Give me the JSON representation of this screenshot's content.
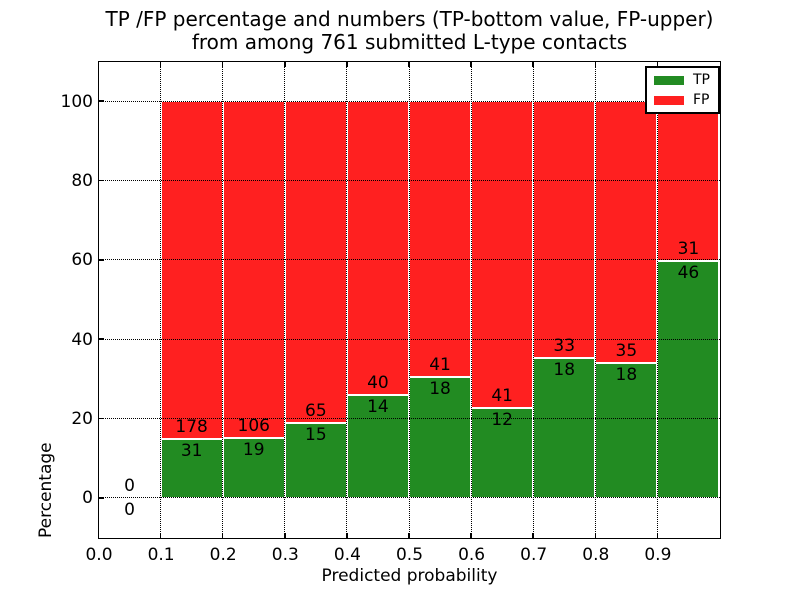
{
  "title": {
    "line1": "TP /FP percentage and numbers (TP-bottom value, FP-upper)",
    "line2": "from among 761 submitted L-type contacts"
  },
  "axes": {
    "xlabel": "Predicted probability",
    "ylabel": "Percentage",
    "xticks": [
      {
        "p": 0.0,
        "label": "0.0"
      },
      {
        "p": 0.1,
        "label": "0.1"
      },
      {
        "p": 0.2,
        "label": "0.2"
      },
      {
        "p": 0.3,
        "label": "0.3"
      },
      {
        "p": 0.4,
        "label": "0.4"
      },
      {
        "p": 0.5,
        "label": "0.5"
      },
      {
        "p": 0.6,
        "label": "0.6"
      },
      {
        "p": 0.7,
        "label": "0.7"
      },
      {
        "p": 0.8,
        "label": "0.8"
      },
      {
        "p": 0.9,
        "label": "0.9"
      }
    ],
    "yticks": [
      {
        "v": 0,
        "label": "0"
      },
      {
        "v": 20,
        "label": "20"
      },
      {
        "v": 40,
        "label": "40"
      },
      {
        "v": 60,
        "label": "60"
      },
      {
        "v": 80,
        "label": "80"
      },
      {
        "v": 100,
        "label": "100"
      }
    ]
  },
  "legend": {
    "entries": [
      {
        "label": "TP",
        "color": "#228b22"
      },
      {
        "label": "FP",
        "color": "#ff2020"
      }
    ]
  },
  "chart_data": {
    "type": "bar",
    "stacked": true,
    "title": "TP /FP percentage and numbers (TP-bottom value, FP-upper) from among 761 submitted L-type contacts",
    "xlabel": "Predicted probability",
    "ylabel": "Percentage",
    "xlim": [
      0.0,
      1.0
    ],
    "ylim": [
      -10,
      110
    ],
    "grid": true,
    "legend_position": "upper right",
    "total_submitted": 761,
    "series_names": [
      "TP",
      "FP"
    ],
    "colors": {
      "TP": "#228b22",
      "FP": "#ff2020"
    },
    "bins": [
      {
        "x0": 0.0,
        "x1": 0.1,
        "tp": 0,
        "fp": 0,
        "tp_pct": 0,
        "fp_pct": 0
      },
      {
        "x0": 0.1,
        "x1": 0.2,
        "tp": 31,
        "fp": 178,
        "tp_pct": 14.83,
        "fp_pct": 85.17
      },
      {
        "x0": 0.2,
        "x1": 0.3,
        "tp": 19,
        "fp": 106,
        "tp_pct": 15.2,
        "fp_pct": 84.8
      },
      {
        "x0": 0.3,
        "x1": 0.4,
        "tp": 15,
        "fp": 65,
        "tp_pct": 18.75,
        "fp_pct": 81.25
      },
      {
        "x0": 0.4,
        "x1": 0.5,
        "tp": 14,
        "fp": 40,
        "tp_pct": 25.93,
        "fp_pct": 74.07
      },
      {
        "x0": 0.5,
        "x1": 0.6,
        "tp": 18,
        "fp": 41,
        "tp_pct": 30.51,
        "fp_pct": 69.49
      },
      {
        "x0": 0.6,
        "x1": 0.7,
        "tp": 12,
        "fp": 41,
        "tp_pct": 22.64,
        "fp_pct": 77.36
      },
      {
        "x0": 0.7,
        "x1": 0.8,
        "tp": 18,
        "fp": 33,
        "tp_pct": 35.29,
        "fp_pct": 64.71
      },
      {
        "x0": 0.8,
        "x1": 0.9,
        "tp": 18,
        "fp": 35,
        "tp_pct": 33.96,
        "fp_pct": 66.04
      },
      {
        "x0": 0.9,
        "x1": 1.0,
        "tp": 46,
        "fp": 31,
        "tp_pct": 59.74,
        "fp_pct": 40.26
      }
    ]
  }
}
